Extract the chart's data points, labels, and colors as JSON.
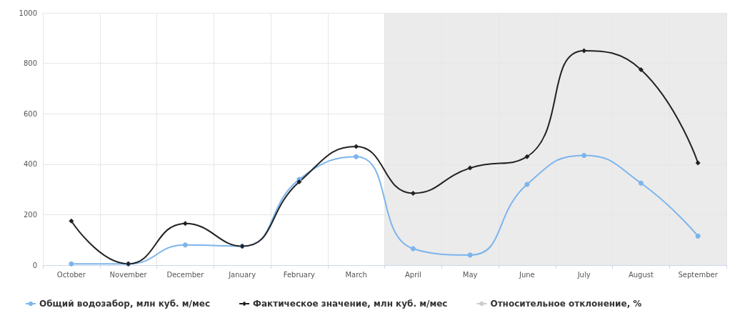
{
  "chart_data": {
    "type": "line",
    "categories": [
      "October",
      "November",
      "December",
      "January",
      "February",
      "March",
      "April",
      "May",
      "June",
      "July",
      "August",
      "September"
    ],
    "series": [
      {
        "name": "Общий водозабор, млн куб. м/мес",
        "color": "#7cb5ec",
        "marker": "circle",
        "values": [
          5,
          5,
          80,
          75,
          340,
          430,
          65,
          40,
          320,
          435,
          325,
          115
        ]
      },
      {
        "name": "Фактическое значение, млн куб. м/мес",
        "color": "#222222",
        "marker": "diamond",
        "values": [
          175,
          5,
          165,
          75,
          330,
          470,
          285,
          385,
          430,
          850,
          775,
          405
        ]
      },
      {
        "name": "Относительное отклонение, %",
        "color": "#cccccc",
        "marker": "circle",
        "values": [
          null,
          null,
          null,
          null,
          null,
          null,
          null,
          null,
          null,
          null,
          null,
          null
        ]
      }
    ],
    "ylim": [
      0,
      1000
    ],
    "yticks": [
      0,
      200,
      400,
      600,
      800,
      1000
    ],
    "bands": [
      {
        "axis": "x",
        "from": "April",
        "to": "September",
        "color": "#ebebeb"
      }
    ],
    "grid": true,
    "legend": "bottom left"
  }
}
